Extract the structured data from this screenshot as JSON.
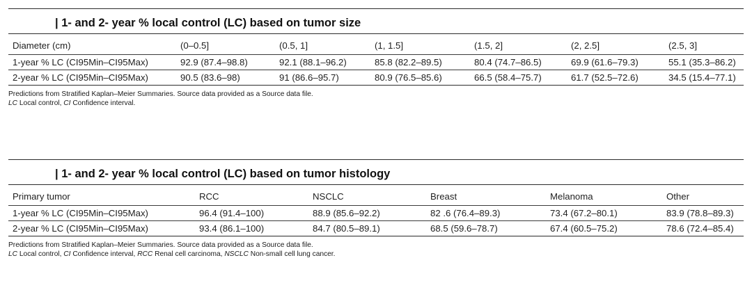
{
  "size_section": {
    "title": "| 1- and 2- year % local control (LC) based on tumor size",
    "header": [
      "Diameter (cm)",
      "(0–0.5]",
      "(0.5, 1]",
      "(1, 1.5]",
      "(1.5, 2]",
      "(2, 2.5]",
      "(2.5, 3]"
    ],
    "rows": [
      [
        "1-year % LC (CI95Min–CI95Max)",
        "92.9 (87.4–98.8)",
        "92.1 (88.1–96.2)",
        "85.8 (82.2–89.5)",
        "80.4 (74.7–86.5)",
        "69.9 (61.6–79.3)",
        "55.1 (35.3–86.2)"
      ],
      [
        "2-year % LC (CI95Min–CI95Max)",
        "90.5 (83.6–98)",
        "91 (86.6–95.7)",
        "80.9 (76.5–85.6)",
        "66.5 (58.4–75.7)",
        "61.7 (52.5–72.6)",
        "34.5 (15.4–77.1)"
      ]
    ],
    "note_line1": "Predictions from Stratified Kaplan–Meier Summaries. Source data provided as a Source data file.",
    "note_line2_parts": [
      "LC",
      " Local control, ",
      "CI",
      " Confidence interval."
    ]
  },
  "histology_section": {
    "title": "| 1- and 2- year % local control (LC) based on tumor histology",
    "header": [
      "Primary tumor",
      "RCC",
      "NSCLC",
      "Breast",
      "Melanoma",
      "Other"
    ],
    "rows": [
      [
        "1-year % LC (CI95Min–CI95Max)",
        "96.4 (91.4–100)",
        "88.9 (85.6–92.2)",
        "82 .6 (76.4–89.3)",
        "73.4 (67.2–80.1)",
        "83.9 (78.8–89.3)"
      ],
      [
        "2-year % LC (CI95Min–CI95Max)",
        "93.4 (86.1–100)",
        "84.7 (80.5–89.1)",
        "68.5 (59.6–78.7)",
        "67.4 (60.5–75.2)",
        "78.6 (72.4–85.4)"
      ]
    ],
    "note_line1": "Predictions from Stratified Kaplan–Meier Summaries. Source data provided as a Source data file.",
    "note_line2_parts": [
      "LC",
      " Local control, ",
      "CI",
      " Confidence interval, ",
      "RCC",
      " Renal cell carcinoma, ",
      "NSCLC",
      " Non-small cell lung cancer."
    ]
  }
}
